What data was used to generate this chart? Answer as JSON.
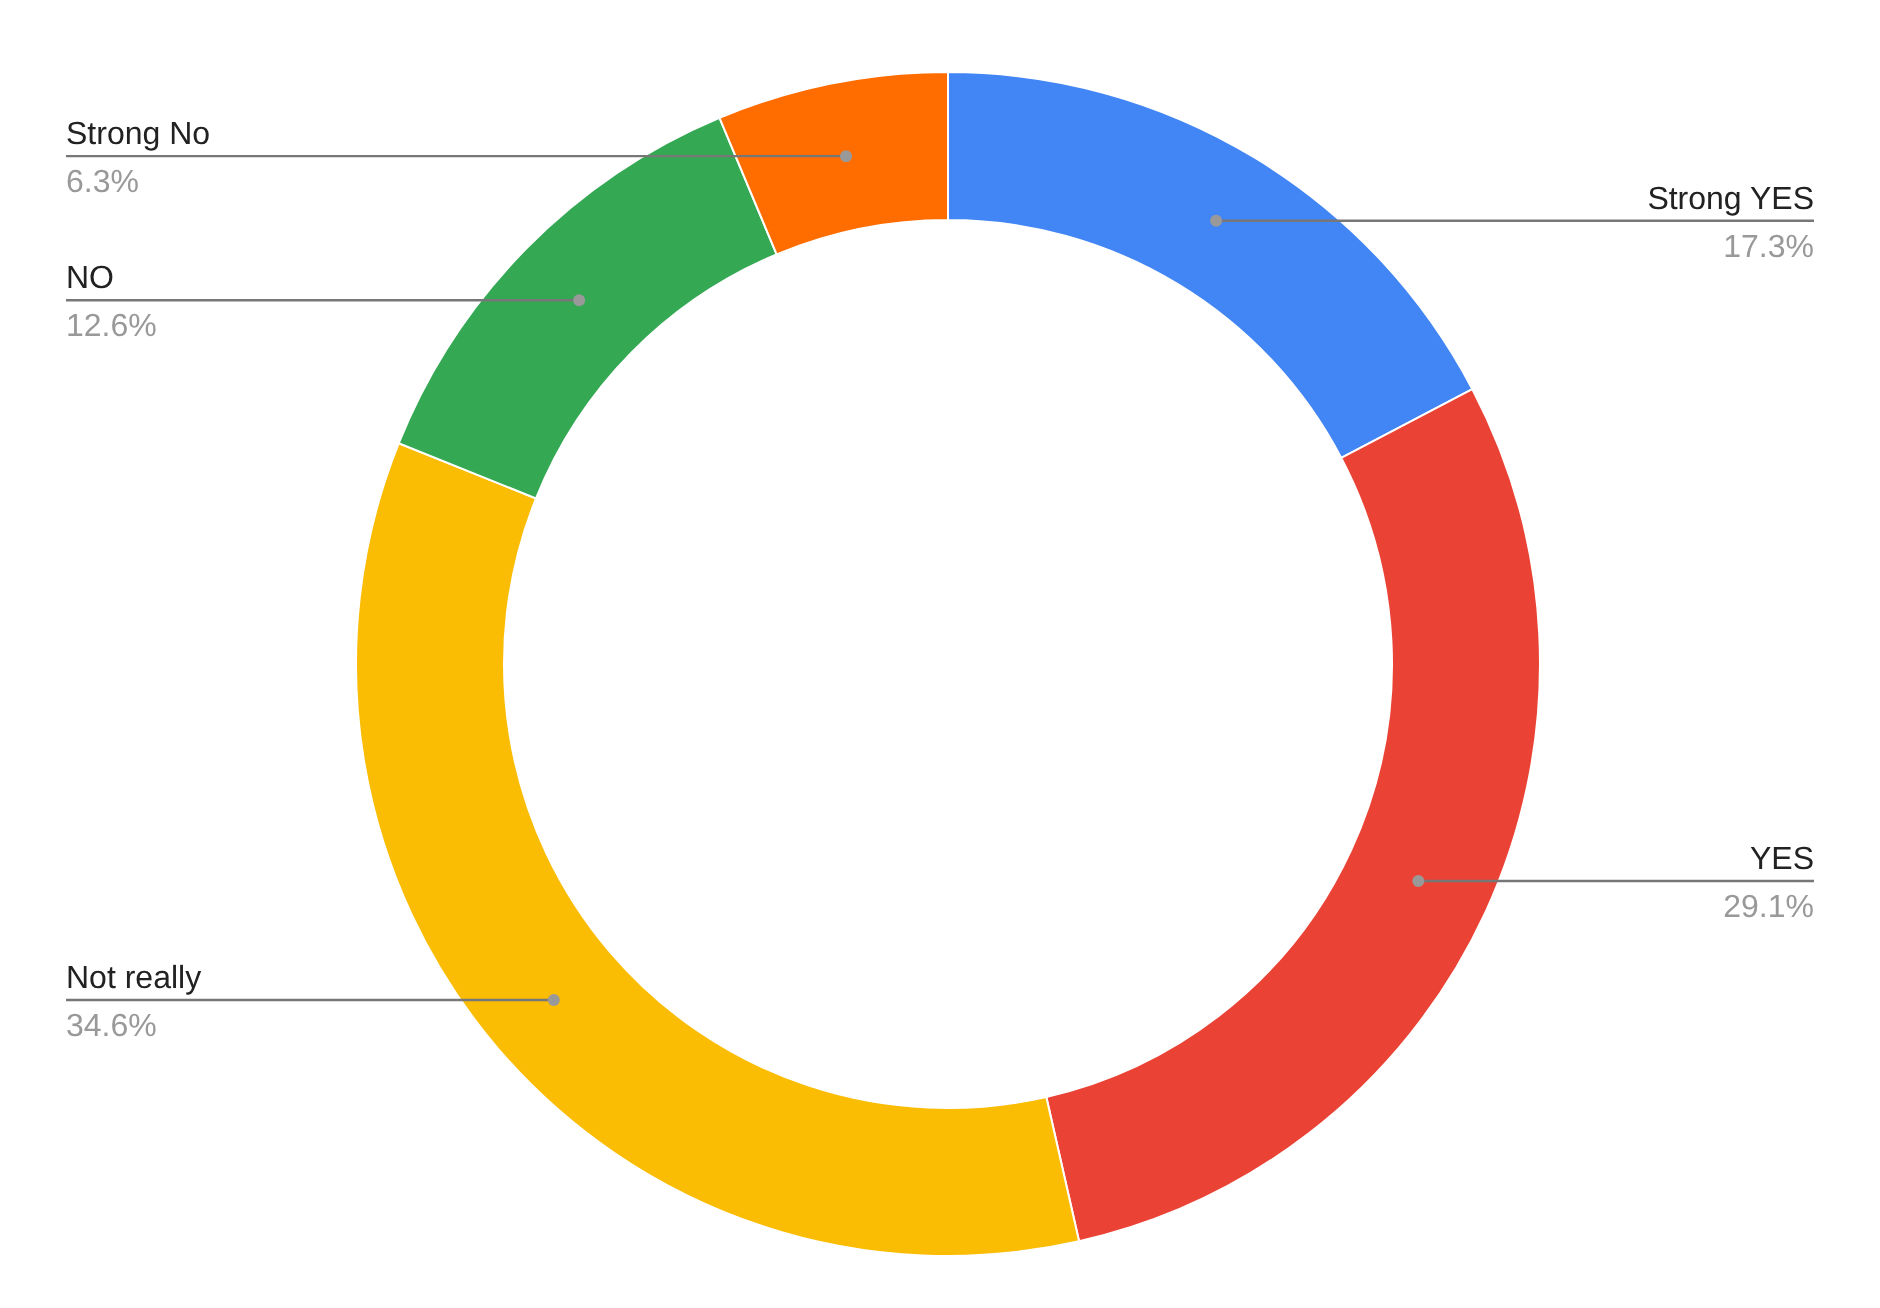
{
  "chart_data": {
    "type": "donut",
    "categories": [
      "Strong YES",
      "YES",
      "Not really",
      "NO",
      "Strong No"
    ],
    "values": [
      17.3,
      29.1,
      34.6,
      12.6,
      6.3
    ],
    "colors": [
      "#4285f4",
      "#ea4335",
      "#fbbc04",
      "#34a853",
      "#ff6d01"
    ],
    "value_labels": [
      "17.3%",
      "29.1%",
      "34.6%",
      "12.6%",
      "6.3%"
    ]
  }
}
